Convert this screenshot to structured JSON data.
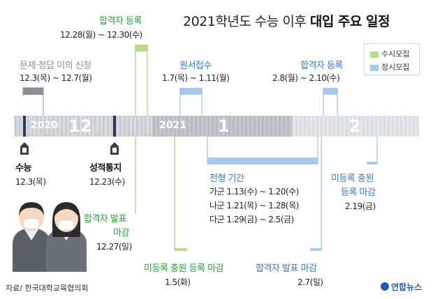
{
  "title": {
    "main": "2021학년도 수능 이후 ",
    "bold": "대입 주요 일정"
  },
  "legend": {
    "items": [
      {
        "label": "수시모집",
        "color": "#b8dc8c"
      },
      {
        "label": "정시모집",
        "color": "#a7c8ef"
      }
    ]
  },
  "timeline": {
    "months": [
      {
        "year": "2020",
        "month": "12"
      },
      {
        "year": "2021",
        "month": "1"
      },
      {
        "year": "",
        "month": "2"
      }
    ]
  },
  "events": {
    "appeal": {
      "label": "문제·정답 이의 신청",
      "date": "12.3(목) ~ 12.7(월)"
    },
    "susi_accept": {
      "label": "합격자 등록",
      "date": "12.28(월) ~ 12.30(수)"
    },
    "csat": {
      "label": "수능",
      "date": "12.3(목)"
    },
    "score": {
      "label": "성적통지",
      "date": "12.23(수)"
    },
    "susi_announce": {
      "label1": "합격자 발표",
      "label2": "마감",
      "date": "12.27(일)"
    },
    "susi_unreg": {
      "label": "미등록 충원 등록 마감",
      "date": "1.5(화)"
    },
    "apply": {
      "label": "원서접수",
      "date": "1.7(목) ~ 1.11(월)"
    },
    "screening": {
      "label": "전형 기간",
      "lines": [
        "가군 1.13(수) ~ 1.20(수)",
        "나군 1.21(목) ~ 1.28(목)",
        "다군 1.29(금) ~ 2.5(금)"
      ]
    },
    "jungsi_announce": {
      "label": "합격자 발표 마감",
      "date": "2.7(일)"
    },
    "jungsi_accept": {
      "label": "합격자 등록",
      "date": "2.8(월) ~ 2.10(수)"
    },
    "jungsi_unreg": {
      "label1": "미등록 충원",
      "label2": "등록 마감",
      "date": "2.19(금)"
    }
  },
  "footer": {
    "source": "자료/ 한국대학교육협의회",
    "logo": "연합뉴스"
  }
}
